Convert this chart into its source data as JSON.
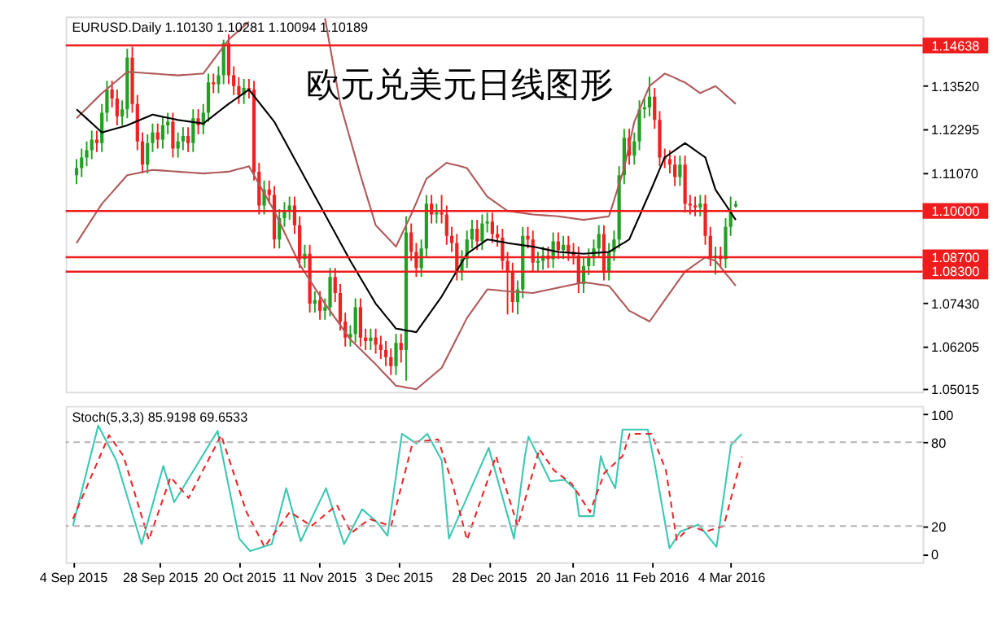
{
  "chart_data": [
    {
      "type": "candlestick",
      "annotations": [
        "EURUSD.Daily 1.10130 1.10281 1.10094 1.10189",
        "欧元兑美元日线图形"
      ],
      "categories": [
        null,
        null,
        null,
        null,
        null,
        null,
        null,
        null,
        null,
        null,
        null,
        null,
        null,
        null,
        null,
        null,
        null,
        null,
        null,
        null,
        null,
        null,
        null,
        null,
        null,
        null,
        null,
        null,
        null,
        null,
        null,
        null,
        null,
        null,
        null,
        null,
        null,
        null,
        null,
        null,
        null,
        null,
        null,
        null,
        null,
        null,
        null,
        null,
        null,
        null,
        null,
        null,
        null,
        null,
        null,
        null,
        null,
        null,
        null,
        null,
        null,
        null,
        null,
        null,
        null,
        null,
        null,
        null,
        null,
        null,
        null,
        null,
        null,
        null,
        null,
        null,
        null,
        null,
        null,
        null,
        null,
        null,
        null,
        null,
        null,
        null,
        null,
        null,
        null,
        null,
        null,
        null,
        null,
        null,
        null,
        null,
        null,
        null,
        null,
        null,
        null,
        null,
        null,
        null,
        null,
        null,
        null,
        null,
        null,
        null,
        null,
        null,
        null,
        null,
        null,
        null,
        null,
        null,
        null,
        null,
        null,
        null,
        null,
        null,
        null,
        null,
        null,
        null,
        null,
        null,
        null
      ],
      "ohlc": [
        [
          1.11,
          1.1145,
          1.1075,
          1.112
        ],
        [
          1.112,
          1.1175,
          1.1095,
          1.115
        ],
        [
          1.115,
          1.1195,
          1.1125,
          1.117
        ],
        [
          1.117,
          1.1225,
          1.1145,
          1.12
        ],
        [
          1.12,
          1.1225,
          1.1165,
          1.119
        ],
        [
          1.119,
          1.13,
          1.1165,
          1.1275
        ],
        [
          1.1275,
          1.1365,
          1.125,
          1.134
        ],
        [
          1.134,
          1.1365,
          1.129,
          1.1315
        ],
        [
          1.1315,
          1.134,
          1.124,
          1.1265
        ],
        [
          1.1265,
          1.131,
          1.124,
          1.1285
        ],
        [
          1.1285,
          1.1455,
          1.126,
          1.143
        ],
        [
          1.143,
          1.146,
          1.1275,
          1.13
        ],
        [
          1.13,
          1.1325,
          1.117,
          1.1195
        ],
        [
          1.1195,
          1.122,
          1.1105,
          1.113
        ],
        [
          1.113,
          1.1215,
          1.1105,
          1.119
        ],
        [
          1.119,
          1.1245,
          1.1165,
          1.122
        ],
        [
          1.122,
          1.1245,
          1.1175,
          1.12
        ],
        [
          1.12,
          1.1265,
          1.1175,
          1.124
        ],
        [
          1.124,
          1.1275,
          1.1215,
          1.125
        ],
        [
          1.125,
          1.1275,
          1.115,
          1.1175
        ],
        [
          1.1175,
          1.122,
          1.115,
          1.1195
        ],
        [
          1.1195,
          1.1235,
          1.117,
          1.121
        ],
        [
          1.121,
          1.1235,
          1.1165,
          1.119
        ],
        [
          1.119,
          1.1285,
          1.1165,
          1.126
        ],
        [
          1.126,
          1.1285,
          1.1215,
          1.124
        ],
        [
          1.124,
          1.13,
          1.1215,
          1.1275
        ],
        [
          1.1275,
          1.1385,
          1.125,
          1.136
        ],
        [
          1.136,
          1.1385,
          1.133,
          1.1355
        ],
        [
          1.1355,
          1.1405,
          1.133,
          1.138
        ],
        [
          1.138,
          1.148,
          1.1355,
          1.147
        ],
        [
          1.147,
          1.1495,
          1.1355,
          1.138
        ],
        [
          1.138,
          1.1405,
          1.1325,
          1.135
        ],
        [
          1.135,
          1.1375,
          1.13,
          1.1325
        ],
        [
          1.1325,
          1.137,
          1.13,
          1.1345
        ],
        [
          1.1345,
          1.137,
          1.1315,
          1.134
        ],
        [
          1.134,
          1.1365,
          1.1085,
          1.111
        ],
        [
          1.111,
          1.1135,
          1.099,
          1.1015
        ],
        [
          1.1015,
          1.1085,
          1.099,
          1.106
        ],
        [
          1.106,
          1.1085,
          1.102,
          1.1045
        ],
        [
          1.1045,
          1.107,
          1.0895,
          1.092
        ],
        [
          1.092,
          1.1005,
          1.0895,
          1.098
        ],
        [
          1.098,
          1.1025,
          1.0955,
          1.1
        ],
        [
          1.1,
          1.104,
          1.0975,
          1.1015
        ],
        [
          1.1015,
          1.104,
          1.0935,
          1.096
        ],
        [
          1.096,
          1.0985,
          1.084,
          1.0865
        ],
        [
          1.0865,
          1.0905,
          1.084,
          1.088
        ],
        [
          1.088,
          1.0905,
          1.0715,
          1.074
        ],
        [
          1.074,
          1.0775,
          1.0715,
          1.075
        ],
        [
          1.075,
          1.0775,
          1.0695,
          1.072
        ],
        [
          1.072,
          1.0755,
          1.0695,
          1.073
        ],
        [
          1.073,
          1.084,
          1.0705,
          1.0815
        ],
        [
          1.0815,
          1.084,
          1.0745,
          1.077
        ],
        [
          1.077,
          1.0795,
          1.0665,
          1.069
        ],
        [
          1.069,
          1.0715,
          1.062,
          1.0645
        ],
        [
          1.0645,
          1.068,
          1.062,
          1.0655
        ],
        [
          1.0655,
          1.0755,
          1.063,
          1.073
        ],
        [
          1.073,
          1.0755,
          1.062,
          1.0645
        ],
        [
          1.0645,
          1.067,
          1.061,
          1.0635
        ],
        [
          1.0635,
          1.067,
          1.061,
          1.0645
        ],
        [
          1.0645,
          1.067,
          1.06,
          1.0625
        ],
        [
          1.0625,
          1.065,
          1.0585,
          1.061
        ],
        [
          1.061,
          1.0635,
          1.0565,
          1.059
        ],
        [
          1.059,
          1.0615,
          1.054,
          1.0565
        ],
        [
          1.0565,
          1.0655,
          1.054,
          1.063
        ],
        [
          1.063,
          1.0655,
          1.0575,
          1.061
        ],
        [
          1.061,
          1.0985,
          1.0524,
          1.094
        ],
        [
          1.094,
          1.0965,
          1.086,
          1.0885
        ],
        [
          1.0885,
          1.091,
          1.0815,
          1.084
        ],
        [
          1.084,
          1.092,
          1.0815,
          1.0895
        ],
        [
          1.0895,
          1.1045,
          1.087,
          1.102
        ],
        [
          1.102,
          1.1045,
          1.0965,
          1.099
        ],
        [
          1.099,
          1.102,
          1.0965,
          1.0995
        ],
        [
          1.0995,
          1.1045,
          1.0965,
          1.099
        ],
        [
          1.099,
          1.1015,
          1.0905,
          1.093
        ],
        [
          1.093,
          1.0955,
          1.0885,
          1.091
        ],
        [
          1.091,
          1.0935,
          1.0805,
          1.083
        ],
        [
          1.083,
          1.089,
          1.0805,
          1.0865
        ],
        [
          1.0865,
          1.0945,
          1.084,
          1.092
        ],
        [
          1.092,
          1.0975,
          1.0895,
          1.095
        ],
        [
          1.095,
          1.0975,
          1.089,
          1.0915
        ],
        [
          1.0915,
          1.099,
          1.089,
          1.0965
        ],
        [
          1.0965,
          1.0995,
          1.094,
          1.097
        ],
        [
          1.097,
          1.0995,
          1.091,
          1.0935
        ],
        [
          1.0935,
          1.096,
          1.09,
          1.0925
        ],
        [
          1.0925,
          1.095,
          1.0835,
          1.086
        ],
        [
          1.086,
          1.0885,
          1.071,
          1.083
        ],
        [
          1.083,
          1.0855,
          1.0715,
          1.0745
        ],
        [
          1.0745,
          1.0805,
          1.071,
          1.078
        ],
        [
          1.078,
          1.0955,
          1.0755,
          1.093
        ],
        [
          1.093,
          1.0955,
          1.0895,
          1.092
        ],
        [
          1.092,
          1.0945,
          1.083,
          1.0855
        ],
        [
          1.0855,
          1.0885,
          1.083,
          1.086
        ],
        [
          1.086,
          1.09,
          1.0835,
          1.0875
        ],
        [
          1.0875,
          1.09,
          1.084,
          1.0865
        ],
        [
          1.0865,
          1.094,
          1.084,
          1.0915
        ],
        [
          1.0915,
          1.094,
          1.0865,
          1.089
        ],
        [
          1.089,
          1.093,
          1.0865,
          1.0905
        ],
        [
          1.0905,
          1.093,
          1.086,
          1.0885
        ],
        [
          1.0885,
          1.091,
          1.085,
          1.0875
        ],
        [
          1.0875,
          1.09,
          1.077,
          1.0795
        ],
        [
          1.0795,
          1.087,
          1.077,
          1.0845
        ],
        [
          1.0845,
          1.0895,
          1.082,
          1.087
        ],
        [
          1.087,
          1.092,
          1.0845,
          1.0895
        ],
        [
          1.0895,
          1.096,
          1.087,
          1.0935
        ],
        [
          1.0935,
          1.096,
          1.0805,
          1.083
        ],
        [
          1.083,
          1.091,
          1.0805,
          1.0885
        ],
        [
          1.0885,
          1.0945,
          1.086,
          1.092
        ],
        [
          1.092,
          1.1125,
          1.0895,
          1.11
        ],
        [
          1.11,
          1.123,
          1.1075,
          1.1205
        ],
        [
          1.1205,
          1.123,
          1.113,
          1.1155
        ],
        [
          1.1155,
          1.122,
          1.113,
          1.1195
        ],
        [
          1.1195,
          1.131,
          1.117,
          1.1285
        ],
        [
          1.1285,
          1.1315,
          1.126,
          1.129
        ],
        [
          1.129,
          1.1376,
          1.1265,
          1.132
        ],
        [
          1.132,
          1.1345,
          1.123,
          1.1255
        ],
        [
          1.1255,
          1.128,
          1.1125,
          1.115
        ],
        [
          1.115,
          1.1175,
          1.112,
          1.1145
        ],
        [
          1.1145,
          1.117,
          1.1105,
          1.113
        ],
        [
          1.113,
          1.1155,
          1.107,
          1.1095
        ],
        [
          1.1095,
          1.1155,
          1.107,
          1.113
        ],
        [
          1.113,
          1.1155,
          1.0995,
          1.102
        ],
        [
          1.102,
          1.1045,
          1.099,
          1.1015
        ],
        [
          1.1015,
          1.104,
          1.0985,
          1.101
        ],
        [
          1.101,
          1.1045,
          1.0985,
          1.102
        ],
        [
          1.102,
          1.1045,
          1.0905,
          1.093
        ],
        [
          1.093,
          1.0955,
          1.0845,
          1.087
        ],
        [
          1.087,
          1.09,
          1.0822,
          1.0875
        ],
        [
          1.0875,
          1.09,
          1.084,
          1.0865
        ],
        [
          1.0865,
          1.098,
          1.084,
          1.0955
        ],
        [
          1.0955,
          1.104,
          1.093,
          1.0995
        ],
        [
          1.1013,
          1.10281,
          1.10094,
          1.10189
        ]
      ],
      "colors": [
        "#22a022",
        "#22a022",
        "#22a022",
        "#22a022",
        "#ee2222",
        "#22a022",
        "#22a022",
        "#ee2222",
        "#ee2222",
        "#22a022",
        "#22a022",
        "#ee2222",
        "#ee2222",
        "#ee2222",
        "#22a022",
        "#22a022",
        "#ee2222",
        "#22a022",
        "#22a022",
        "#ee2222",
        "#22a022",
        "#22a022",
        "#ee2222",
        "#22a022",
        "#ee2222",
        "#22a022",
        "#22a022",
        "#ee2222",
        "#22a022",
        "#22a022",
        "#ee2222",
        "#ee2222",
        "#ee2222",
        "#22a022",
        "#ee2222",
        "#ee2222",
        "#ee2222",
        "#22a022",
        "#ee2222",
        "#ee2222",
        "#22a022",
        "#22a022",
        "#22a022",
        "#ee2222",
        "#ee2222",
        "#22a022",
        "#ee2222",
        "#22a022",
        "#ee2222",
        "#22a022",
        "#22a022",
        "#ee2222",
        "#ee2222",
        "#ee2222",
        "#22a022",
        "#22a022",
        "#ee2222",
        "#ee2222",
        "#22a022",
        "#ee2222",
        "#ee2222",
        "#ee2222",
        "#ee2222",
        "#22a022",
        "#ee2222",
        "#22a022",
        "#ee2222",
        "#ee2222",
        "#22a022",
        "#22a022",
        "#ee2222",
        "#22a022",
        "#ee2222",
        "#ee2222",
        "#ee2222",
        "#ee2222",
        "#22a022",
        "#22a022",
        "#22a022",
        "#ee2222",
        "#22a022",
        "#22a022",
        "#ee2222",
        "#ee2222",
        "#ee2222",
        "#ee2222",
        "#ee2222",
        "#22a022",
        "#22a022",
        "#ee2222",
        "#ee2222",
        "#22a022",
        "#22a022",
        "#ee2222",
        "#22a022",
        "#ee2222",
        "#22a022",
        "#ee2222",
        "#ee2222",
        "#ee2222",
        "#22a022",
        "#22a022",
        "#22a022",
        "#22a022",
        "#ee2222",
        "#22a022",
        "#22a022",
        "#22a022",
        "#22a022",
        "#ee2222",
        "#22a022",
        "#22a022",
        "#22a022",
        "#22a022",
        "#ee2222",
        "#ee2222",
        "#ee2222",
        "#ee2222",
        "#ee2222",
        "#22a022",
        "#ee2222",
        "#ee2222",
        "#ee2222",
        "#22a022",
        "#ee2222",
        "#ee2222",
        "#22a022",
        "#ee2222",
        "#22a022",
        "#22a022",
        "#22a022"
      ],
      "series": [
        {
          "type": "line",
          "color": "#b05a5a",
          "values": [
            1.126,
            1.1274,
            1.1288,
            1.1302,
            1.1316,
            1.133,
            1.1342,
            1.1354,
            1.1366,
            1.1378,
            1.139,
            1.1389,
            1.1388,
            1.1387,
            1.1386,
            1.1385,
            1.1384,
            1.1383,
            1.1382,
            1.1381,
            1.138,
            1.1381,
            1.1382,
            1.1383,
            1.1384,
            1.1385,
            1.1404,
            1.1423,
            1.1442,
            1.1461,
            1.148,
            1.1493,
            1.1505,
            1.1518,
            1.153,
            null,
            null,
            null,
            null,
            null,
            null,
            null,
            null,
            null,
            null,
            null,
            null,
            null,
            null,
            1.154,
            1.146,
            1.138,
            1.13,
            1.125,
            1.12,
            1.115,
            1.11,
            1.1053,
            1.1007,
            1.096,
            1.0945,
            1.093,
            1.0915,
            1.09,
            1.093,
            1.096,
            1.099,
            1.1023,
            1.1057,
            1.109,
            1.1101,
            1.1113,
            1.1124,
            1.1135,
            1.1131,
            1.1128,
            1.1124,
            1.112,
            1.11,
            1.108,
            1.106,
            1.104,
            1.103,
            1.102,
            1.101,
            1.1,
            1.0998,
            1.0996,
            1.0994,
            1.0992,
            1.099,
            1.0989,
            1.0988,
            1.0987,
            1.0986,
            1.0985,
            1.0983,
            1.0981,
            1.0979,
            1.0977,
            1.0975,
            1.0977,
            1.0979,
            1.0981,
            1.0983,
            1.0985,
            1.103,
            1.1075,
            1.112,
            1.1185,
            1.125,
            1.1283,
            1.1317,
            1.135,
            1.1362,
            1.1373,
            1.1385,
            1.1379,
            1.1373,
            1.1366,
            1.136,
            1.135,
            1.134,
            1.133,
            1.1337,
            1.1343,
            1.135,
            1.1338,
            1.1325,
            1.1313,
            1.13
          ]
        },
        {
          "type": "line",
          "color": "#000000",
          "values": [
            1.1285,
            1.1272,
            1.1259,
            1.1246,
            1.1233,
            1.122,
            1.1224,
            1.1228,
            1.1232,
            1.1236,
            1.124,
            1.1246,
            1.1252,
            1.1258,
            1.1264,
            1.127,
            1.1267,
            1.1264,
            1.1261,
            1.1258,
            1.1255,
            1.1253,
            1.1251,
            1.1249,
            1.1247,
            1.1245,
            1.1256,
            1.1267,
            1.1278,
            1.1289,
            1.13,
            1.131,
            1.132,
            1.133,
            1.134,
            1.1322,
            1.1304,
            1.1286,
            1.1268,
            1.125,
            1.1224,
            1.1198,
            1.1172,
            1.1146,
            1.112,
            1.1094,
            1.1068,
            1.1042,
            1.1016,
            1.099,
            1.0964,
            1.0938,
            1.0912,
            1.0886,
            1.086,
            1.0836,
            1.0812,
            1.0788,
            1.0764,
            1.074,
            1.0723,
            1.0705,
            1.0688,
            1.067,
            1.0668,
            1.0665,
            1.0663,
            1.066,
            1.068,
            1.07,
            1.072,
            1.074,
            1.076,
            1.0784,
            1.0808,
            1.0832,
            1.0856,
            1.088,
            1.089,
            1.09,
            1.091,
            1.092,
            1.0918,
            1.0915,
            1.0913,
            1.091,
            1.0908,
            1.0906,
            1.0904,
            1.0902,
            1.09,
            1.0897,
            1.0894,
            1.0891,
            1.0888,
            1.0885,
            1.0884,
            1.0883,
            1.0882,
            1.0881,
            1.088,
            1.0881,
            1.0882,
            1.0883,
            1.0884,
            1.0885,
            1.0894,
            1.0903,
            1.0911,
            1.092,
            1.0953,
            1.0985,
            1.1018,
            1.105,
            1.1083,
            1.1117,
            1.115,
            1.116,
            1.117,
            1.118,
            1.119,
            1.118,
            1.117,
            1.116,
            1.115,
            1.1105,
            1.106,
            1.1039,
            1.1018,
            1.0996,
            1.0975
          ]
        },
        {
          "type": "line",
          "color": "#b05a5a",
          "values": [
            1.091,
            1.0932,
            1.0954,
            1.0976,
            1.0998,
            1.102,
            1.1036,
            1.1052,
            1.1068,
            1.1084,
            1.11,
            1.1103,
            1.1106,
            1.1109,
            1.1112,
            1.1115,
            1.1114,
            1.1113,
            1.1112,
            1.1111,
            1.111,
            1.1109,
            1.1108,
            1.1107,
            1.1106,
            1.1105,
            1.1106,
            1.1107,
            1.1108,
            1.1109,
            1.111,
            1.1114,
            1.1118,
            1.1121,
            1.1125,
            1.11,
            1.1075,
            1.105,
            1.1025,
            1.1,
            1.097,
            1.094,
            1.091,
            1.088,
            1.085,
            1.0828,
            1.0806,
            1.0784,
            1.0762,
            1.074,
            1.072,
            1.07,
            1.068,
            1.066,
            1.064,
            1.0626,
            1.0612,
            1.0598,
            1.0584,
            1.057,
            1.0555,
            1.054,
            1.0525,
            1.051,
            1.0508,
            1.0505,
            1.0503,
            1.05,
            1.0512,
            1.0524,
            1.0536,
            1.0548,
            1.056,
            1.0588,
            1.0616,
            1.0644,
            1.0672,
            1.07,
            1.072,
            1.074,
            1.076,
            1.078,
            1.0779,
            1.0778,
            1.0776,
            1.0775,
            1.0774,
            1.0773,
            1.0772,
            1.0771,
            1.077,
            1.0773,
            1.0776,
            1.0779,
            1.0782,
            1.0785,
            1.0788,
            1.0791,
            1.0794,
            1.0797,
            1.08,
            1.0798,
            1.0796,
            1.0794,
            1.0792,
            1.079,
            1.0773,
            1.0755,
            1.0738,
            1.072,
            1.0713,
            1.0705,
            1.0698,
            1.069,
            1.071,
            1.073,
            1.075,
            1.077,
            1.079,
            1.081,
            1.083,
            1.084,
            1.085,
            1.086,
            1.087,
            1.0865,
            1.086,
            1.0843,
            1.0825,
            1.0808,
            1.079
          ]
        }
      ],
      "ref_lines": [
        {
          "axis": "y",
          "value": 1.14638,
          "label": "1.14638",
          "color": "#ee1c1c",
          "line_style": "solid"
        },
        {
          "axis": "y",
          "value": 1.1,
          "label": "1.10000",
          "color": "#ee1c1c",
          "line_style": "solid"
        },
        {
          "axis": "y",
          "value": 1.087,
          "label": "1.08700",
          "color": "#ee1c1c",
          "line_style": "solid"
        },
        {
          "axis": "y",
          "value": 1.083,
          "label": "1.08300",
          "color": "#ee1c1c",
          "line_style": "solid"
        }
      ],
      "ylim": [
        1.0493,
        1.1545
      ],
      "yticks": [
        {
          "value": 1.1352,
          "label": "1.13520"
        },
        {
          "value": 1.12295,
          "label": "1.12295"
        },
        {
          "value": 1.1107,
          "label": "1.11070"
        },
        {
          "value": 1.0743,
          "label": "1.07430"
        },
        {
          "value": 1.06205,
          "label": "1.06205"
        },
        {
          "value": 1.05015,
          "label": "1.05015"
        }
      ],
      "tick_labels": "y",
      "grid": false
    },
    {
      "type": "line",
      "annotations": [
        "Stoch(5,3,3) 85.9198 69.6533"
      ],
      "series": [
        {
          "color": "#3cc8b4",
          "line_style": "solid",
          "x": [
            "2015-09-04",
            "2015-09-11",
            "2015-09-16",
            "2015-09-23",
            "2015-09-29",
            "2015-10-02",
            "2015-10-14",
            "2015-10-20",
            "2015-10-23",
            "2015-10-29",
            "2015-11-02",
            "2015-11-06",
            "2015-11-13",
            "2015-11-18",
            "2015-11-23",
            "2015-11-27",
            "2015-11-30",
            "2015-12-04",
            "2015-12-08",
            "2015-12-11",
            "2015-12-15",
            "2015-12-17",
            "2015-12-28",
            "2016-01-04",
            "2016-01-07",
            "2016-01-08",
            "2016-01-14",
            "2016-01-18",
            "2016-01-21",
            "2016-01-22",
            "2016-01-26",
            "2016-01-28",
            "2016-01-29",
            "2016-02-01",
            "2016-02-03",
            "2016-02-10",
            "2016-02-12",
            "2016-02-16",
            "2016-02-19",
            "2016-02-24",
            "2016-02-29",
            "2016-03-04",
            "2016-03-07"
          ],
          "values": [
            20,
            92,
            67,
            7,
            63,
            37,
            88,
            11,
            2,
            7,
            47,
            9,
            47,
            7,
            32,
            23,
            13,
            86,
            79,
            86,
            67,
            11,
            76,
            11,
            70,
            84,
            52,
            53,
            46,
            27,
            27,
            70,
            62,
            47,
            89,
            89,
            63,
            4,
            16,
            21,
            5,
            78,
            85.9198
          ]
        },
        {
          "color": "#e8282c",
          "line_style": "dashed",
          "x": [
            "2015-09-04",
            "2015-09-14",
            "2015-09-18",
            "2015-09-25",
            "2015-10-01",
            "2015-10-06",
            "2015-10-15",
            "2015-10-22",
            "2015-10-27",
            "2015-11-03",
            "2015-11-09",
            "2015-11-16",
            "2015-11-20",
            "2015-11-25",
            "2015-12-01",
            "2015-12-07",
            "2015-12-14",
            "2015-12-18",
            "2015-12-22",
            "2015-12-30",
            "2016-01-05",
            "2016-01-11",
            "2016-01-15",
            "2016-01-20",
            "2016-01-25",
            "2016-01-29",
            "2016-02-03",
            "2016-02-05",
            "2016-02-11",
            "2016-02-15",
            "2016-02-18",
            "2016-02-22",
            "2016-02-26",
            "2016-03-02",
            "2016-03-07"
          ],
          "values": [
            25,
            85,
            70,
            10,
            55,
            40,
            85,
            30,
            5,
            30,
            20,
            35,
            15,
            25,
            20,
            80,
            82,
            50,
            10,
            70,
            20,
            75,
            60,
            50,
            30,
            58,
            70,
            86,
            86,
            60,
            10,
            20,
            16,
            20,
            69.6533
          ]
        }
      ],
      "ref_lines": [
        {
          "axis": "y",
          "value": 80,
          "color": "#b4b4b4",
          "line_style": "dashed"
        },
        {
          "axis": "y",
          "value": 20,
          "color": "#b4b4b4",
          "line_style": "dashed"
        }
      ],
      "xlim": [
        "2015-09-02",
        "2016-04-26"
      ],
      "xticks": [
        {
          "value": "2015-09-04",
          "label": "4 Sep 2015"
        },
        {
          "value": "2015-09-28",
          "label": "28 Sep 2015"
        },
        {
          "value": "2015-10-20",
          "label": "20 Oct 2015"
        },
        {
          "value": "2015-11-11",
          "label": "11 Nov 2015"
        },
        {
          "value": "2015-12-03",
          "label": "3 Dec 2015"
        },
        {
          "value": "2015-12-28",
          "label": "28 Dec 2015"
        },
        {
          "value": "2016-01-20",
          "label": "20 Jan 2016"
        },
        {
          "value": "2016-02-11",
          "label": "11 Feb 2016"
        },
        {
          "value": "2016-03-04",
          "label": "4 Mar 2016"
        }
      ],
      "ylim": [
        -6,
        106
      ],
      "yticks": [
        0,
        20,
        80,
        100
      ],
      "grid": false
    }
  ]
}
